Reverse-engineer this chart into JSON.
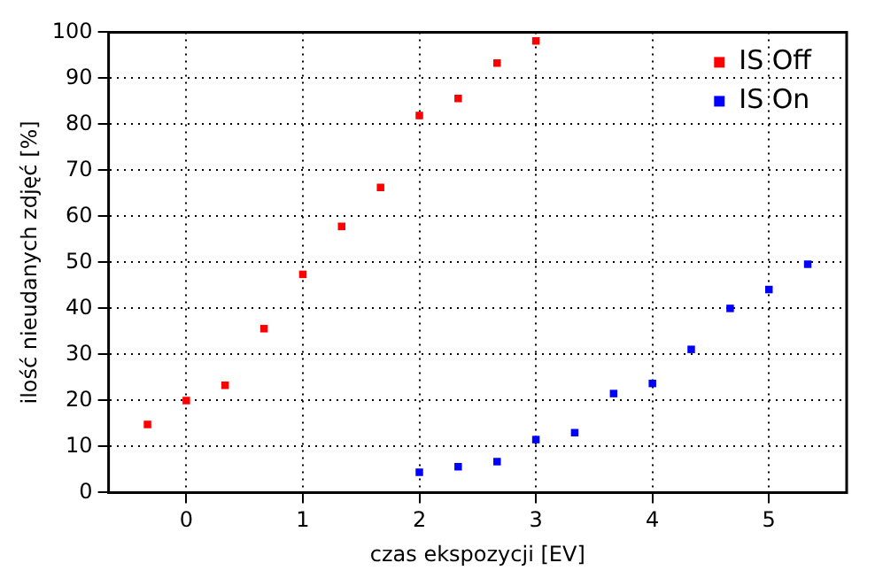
{
  "chart_data": {
    "type": "scatter",
    "xlabel": "czas ekspozycji [EV]",
    "ylabel": "ilość nieudanych zdjęć [%]",
    "series": [
      {
        "name": "IS Off",
        "color": "#ff0000",
        "x": [
          -0.333,
          0,
          0.333,
          0.667,
          1,
          1.333,
          1.667,
          2,
          2.333,
          2.667,
          3
        ],
        "values": [
          14.8,
          20.0,
          23.3,
          35.6,
          47.4,
          57.8,
          66.3,
          81.9,
          85.6,
          93.3,
          98.1
        ]
      },
      {
        "name": "IS On",
        "color": "#0000ff",
        "x": [
          2,
          2.333,
          2.667,
          3,
          3.333,
          3.667,
          4,
          4.333,
          4.667,
          5,
          5.333
        ],
        "values": [
          4.4,
          5.6,
          6.7,
          11.5,
          13.0,
          21.5,
          23.7,
          31.1,
          40.0,
          44.1,
          49.6
        ]
      }
    ],
    "xlim": [
      -0.667,
      5.667
    ],
    "xticks": [
      0,
      1,
      2,
      3,
      4,
      5
    ],
    "ylim": [
      0,
      100
    ],
    "yticks": [
      0,
      10,
      20,
      30,
      40,
      50,
      60,
      70,
      80,
      90,
      100
    ],
    "grid": true,
    "legend": "top right",
    "marker": "square"
  }
}
